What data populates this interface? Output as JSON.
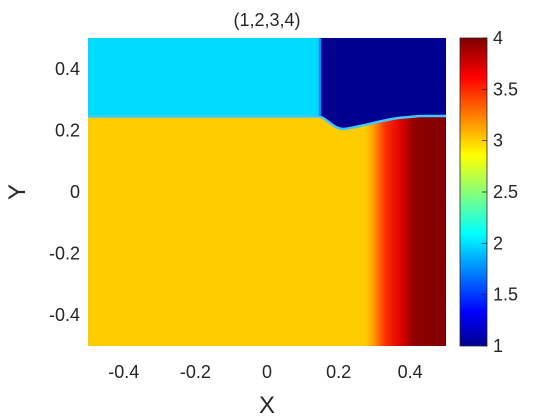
{
  "chart_data": {
    "type": "heatmap",
    "title": "(1,2,3,4)",
    "xlabel": "X",
    "ylabel": "Y",
    "xlim": [
      -0.5,
      0.5
    ],
    "ylim": [
      -0.5,
      0.5
    ],
    "x_ticks": [
      "-0.4",
      "-0.2",
      "0",
      "0.2",
      "0.4"
    ],
    "x_tick_values": [
      -0.4,
      -0.2,
      0,
      0.2,
      0.4
    ],
    "y_ticks": [
      "-0.4",
      "-0.2",
      "0",
      "0.2",
      "0.4"
    ],
    "y_tick_values": [
      -0.4,
      -0.2,
      0,
      0.2,
      0.4
    ],
    "colormap": "jet",
    "clim": [
      1,
      4
    ],
    "colorbar_ticks": [
      "1",
      "1.5",
      "2",
      "2.5",
      "3",
      "3.5",
      "4"
    ],
    "colorbar_tick_values": [
      1,
      1.5,
      2,
      2.5,
      3,
      3.5,
      4
    ],
    "regions": [
      {
        "name": "top-left",
        "x_range": [
          -0.5,
          0.15
        ],
        "y_range": [
          0.25,
          0.5
        ],
        "value": 2
      },
      {
        "name": "top-right",
        "x_range": [
          0.15,
          0.5
        ],
        "y_range": [
          0.25,
          0.5
        ],
        "value": 1
      },
      {
        "name": "bottom",
        "x_range": [
          -0.5,
          0.5
        ],
        "y_range": [
          -0.5,
          0.25
        ],
        "value": 3
      },
      {
        "name": "bottom-right-gradient",
        "x_range": [
          0.3,
          0.5
        ],
        "y_range": [
          -0.5,
          0.25
        ],
        "value_range": [
          3,
          4
        ]
      }
    ]
  }
}
